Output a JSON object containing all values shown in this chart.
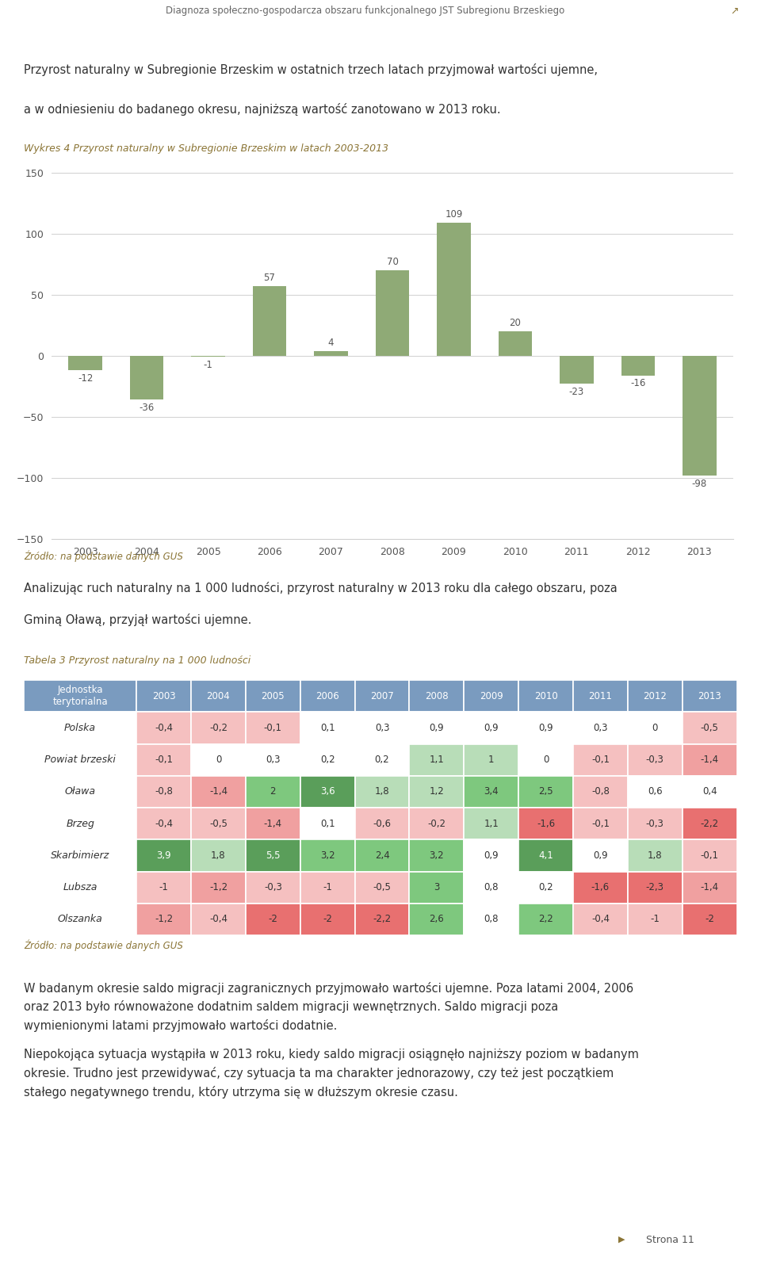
{
  "page_title": "Diagnoza społeczno-gospodarcza obszaru funkcjonalnego JST Subregionu Brzeskiego",
  "page_number": "Strona 11",
  "intro_text_line1": "Przyrost naturalny w Subregionie Brzeskim w ostatnich trzech latach przyjmował wartości ujemne,",
  "intro_text_line2": "a w odniesieniu do badanego okresu, najniższą wartość zanotowano w 2013 roku.",
  "chart_title": "Wykres 4 Przyrost naturalny w Subregionie Brzeskim w latach 2003-2013",
  "years": [
    2003,
    2004,
    2005,
    2006,
    2007,
    2008,
    2009,
    2010,
    2011,
    2012,
    2013
  ],
  "values": [
    -12,
    -36,
    -1,
    57,
    4,
    70,
    109,
    20,
    -23,
    -16,
    -98
  ],
  "bar_color": "#8faa76",
  "ylim": [
    -150,
    150
  ],
  "yticks": [
    -150,
    -100,
    -50,
    0,
    50,
    100,
    150
  ],
  "source_color": "#8b7536",
  "source_text": "Źródło: na podstawie danych GUS",
  "analysis_text_line1": "Analizując ruch naturalny na 1 000 ludności, przyrost naturalny w 2013 roku dla całego obszaru, poza",
  "analysis_text_line2": "Gminą Oławą, przyjął wartości ujemne.",
  "table_title": "Tabela 3 Przyrost naturalny na 1 000 ludności",
  "table_col_header": [
    "Jednostka\nterytorialna",
    "2003",
    "2004",
    "2005",
    "2006",
    "2007",
    "2008",
    "2009",
    "2010",
    "2011",
    "2012",
    "2013"
  ],
  "table_rows": [
    [
      "Polska",
      "-0,4",
      "-0,2",
      "-0,1",
      "0,1",
      "0,3",
      "0,9",
      "0,9",
      "0,9",
      "0,3",
      "0",
      "-0,5"
    ],
    [
      "Powiat brzeski",
      "-0,1",
      "0",
      "0,3",
      "0,2",
      "0,2",
      "1,1",
      "1",
      "0",
      "-0,1",
      "-0,3",
      "-1,4"
    ],
    [
      "Oława",
      "-0,8",
      "-1,4",
      "2",
      "3,6",
      "1,8",
      "1,2",
      "3,4",
      "2,5",
      "-0,8",
      "0,6",
      "0,4"
    ],
    [
      "Brzeg",
      "-0,4",
      "-0,5",
      "-1,4",
      "0,1",
      "-0,6",
      "-0,2",
      "1,1",
      "-1,6",
      "-0,1",
      "-0,3",
      "-2,2"
    ],
    [
      "Skarbimierz",
      "3,9",
      "1,8",
      "5,5",
      "3,2",
      "2,4",
      "3,2",
      "0,9",
      "4,1",
      "0,9",
      "1,8",
      "-0,1"
    ],
    [
      "Lubsza",
      "-1",
      "-1,2",
      "-0,3",
      "-1",
      "-0,5",
      "3",
      "0,8",
      "0,2",
      "-1,6",
      "-2,3",
      "-1,4"
    ],
    [
      "Olszanka",
      "-1,2",
      "-0,4",
      "-2",
      "-2",
      "-2,2",
      "2,6",
      "0,8",
      "2,2",
      "-0,4",
      "-1",
      "-2"
    ]
  ],
  "table_header_bg": "#7a9bbf",
  "table_header_fg": "#ffffff",
  "source2_text": "Źródło: na podstawie danych GUS",
  "bottom_para1_line1": "W badanym okresie saldo migracji zagranicznych przyjmowało wartości ujemne. Poza latami 2004, 2006",
  "bottom_para1_line2": "oraz 2013 było równoważone dodatnim saldem migracji wewnętrznych. Saldo migracji poza",
  "bottom_para1_line3": "wymienionymi latami przyjmowało wartości dodatnie.",
  "bottom_para2_line1": "Niepokojąca sytuacja wystąpiła w 2013 roku, kiedy saldo migracji osiągnęło najniższy poziom w badanym",
  "bottom_para2_line2": "okresie. Trudno jest przewidywać, czy sytuacja ta ma charakter jednorazowy, czy też jest początkiem",
  "bottom_para2_line3": "stałego negatywnego trendu, który utrzyma się w dłuższym okresie czasu."
}
